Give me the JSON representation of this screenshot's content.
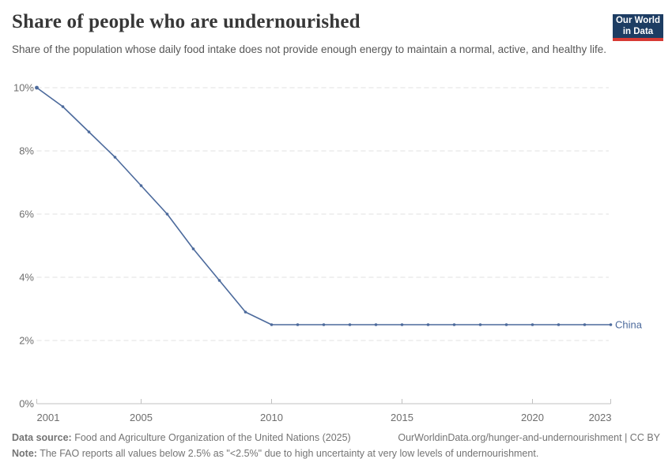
{
  "header": {
    "title": "Share of people who are undernourished",
    "subtitle": "Share of the population whose daily food intake does not provide enough energy to maintain a normal, active, and healthy life.",
    "logo": {
      "line1": "Our World",
      "line2": "in Data",
      "bg_color": "#1d3d63",
      "accent_color": "#d73a34"
    }
  },
  "chart_data": {
    "type": "line",
    "title": "Share of people who are undernourished",
    "xlabel": "",
    "ylabel": "",
    "xlim": [
      2001,
      2023
    ],
    "ylim": [
      0,
      10
    ],
    "grid": "horizontal-dashed",
    "legend_position": "series-end-label",
    "x": [
      2001,
      2002,
      2003,
      2004,
      2005,
      2006,
      2007,
      2008,
      2009,
      2010,
      2011,
      2012,
      2013,
      2014,
      2015,
      2016,
      2017,
      2018,
      2019,
      2020,
      2021,
      2022,
      2023
    ],
    "series": [
      {
        "name": "China",
        "color": "#4c6a9c",
        "values": [
          10,
          9.4,
          8.6,
          7.8,
          6.9,
          6,
          4.9,
          3.9,
          2.9,
          2.5,
          2.5,
          2.5,
          2.5,
          2.5,
          2.5,
          2.5,
          2.5,
          2.5,
          2.5,
          2.5,
          2.5,
          2.5,
          2.5
        ]
      }
    ],
    "x_ticks": [
      {
        "year": 2001,
        "label": "2001"
      },
      {
        "year": 2005,
        "label": "2005"
      },
      {
        "year": 2010,
        "label": "2010"
      },
      {
        "year": 2015,
        "label": "2015"
      },
      {
        "year": 2020,
        "label": "2020"
      },
      {
        "year": 2023,
        "label": "2023"
      }
    ],
    "y_ticks": [
      {
        "value": 0,
        "label": "0%"
      },
      {
        "value": 2,
        "label": "2%"
      },
      {
        "value": 4,
        "label": "4%"
      },
      {
        "value": 6,
        "label": "6%"
      },
      {
        "value": 8,
        "label": "8%"
      },
      {
        "value": 10,
        "label": "10%"
      }
    ],
    "colors": {
      "grid": "#e0e0e0",
      "axis": "#c0c0c0",
      "tick_label": "#6e6e6e"
    }
  },
  "footer": {
    "datasource_label": "Data source:",
    "datasource_text": " Food and Agriculture Organization of the United Nations (2025)",
    "url": "OurWorldinData.org/hunger-and-undernourishment | CC BY",
    "note_label": "Note:",
    "note_text": " The FAO reports all values below 2.5% as \"<2.5%\" due to high uncertainty at very low levels of undernourishment."
  }
}
